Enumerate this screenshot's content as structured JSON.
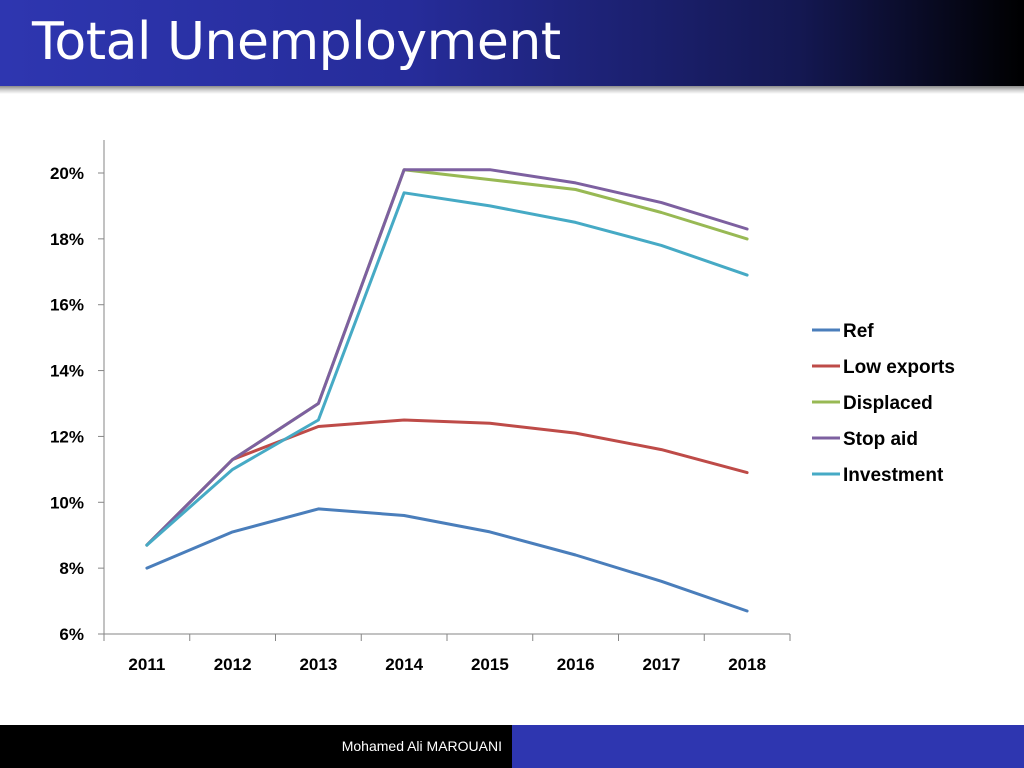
{
  "slide": {
    "title": "Total Unemployment",
    "footer": "Mohamed Ali MAROUANI"
  },
  "chart_data": {
    "type": "line",
    "title": "",
    "xlabel": "",
    "ylabel": "",
    "x": [
      "2011",
      "2012",
      "2013",
      "2014",
      "2015",
      "2016",
      "2017",
      "2018"
    ],
    "ylim": [
      6,
      20
    ],
    "yticks": [
      6,
      8,
      10,
      12,
      14,
      16,
      18,
      20
    ],
    "ytick_labels": [
      "6%",
      "8%",
      "10%",
      "12%",
      "14%",
      "16%",
      "18%",
      "20%"
    ],
    "grid": false,
    "legend": "right",
    "series": [
      {
        "name": "Ref",
        "color": "#4a7ebb",
        "values": [
          8.0,
          9.1,
          9.8,
          9.6,
          9.1,
          8.4,
          7.6,
          6.7
        ]
      },
      {
        "name": "Low exports",
        "color": "#be4b48",
        "values": [
          8.7,
          11.3,
          12.3,
          12.5,
          12.4,
          12.1,
          11.6,
          10.9
        ]
      },
      {
        "name": "Displaced",
        "color": "#98b954",
        "values": [
          8.7,
          11.3,
          13.0,
          20.1,
          19.8,
          19.5,
          18.8,
          18.0
        ]
      },
      {
        "name": "Stop aid",
        "color": "#7d60a0",
        "values": [
          8.7,
          11.3,
          13.0,
          20.1,
          20.1,
          19.7,
          19.1,
          18.3
        ]
      },
      {
        "name": "Investment",
        "color": "#46aac5",
        "values": [
          8.7,
          11.0,
          12.5,
          19.4,
          19.0,
          18.5,
          17.8,
          16.9
        ]
      }
    ]
  }
}
